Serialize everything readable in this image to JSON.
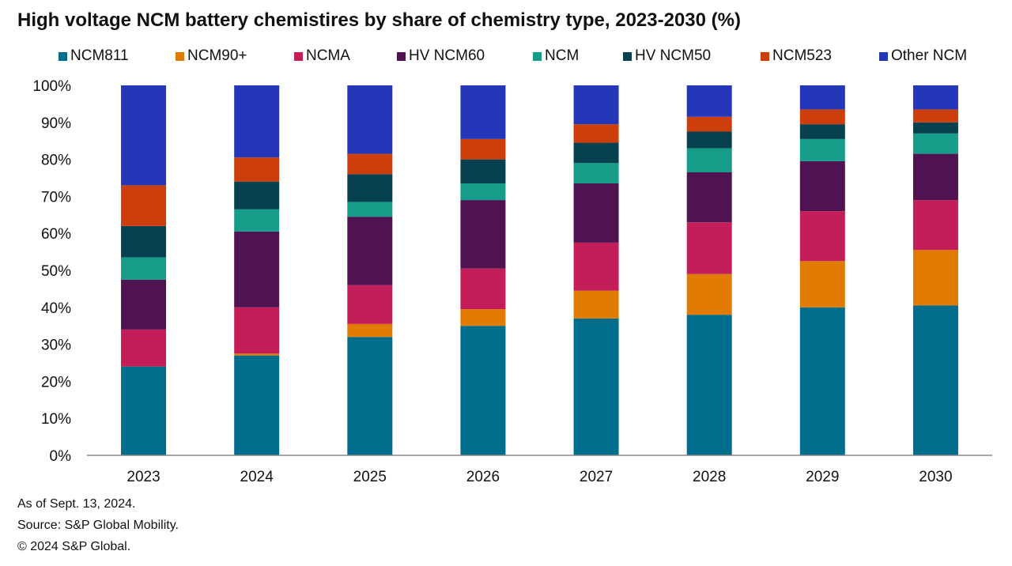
{
  "chart_data": {
    "type": "bar",
    "stacked": true,
    "title": "High voltage NCM battery chemistires by share of chemistry type, 2023-2030 (%)",
    "categories": [
      "2023",
      "2024",
      "2025",
      "2026",
      "2027",
      "2028",
      "2029",
      "2030"
    ],
    "ylim": [
      0,
      100
    ],
    "yticks": [
      "0%",
      "10%",
      "20%",
      "30%",
      "40%",
      "50%",
      "60%",
      "70%",
      "80%",
      "90%",
      "100%"
    ],
    "legend_position": "top",
    "grid": false,
    "series": [
      {
        "name": "NCM811",
        "color": "#006D8C",
        "values": [
          24,
          27,
          32,
          35,
          37,
          38,
          40,
          40.5
        ]
      },
      {
        "name": "NCM90+",
        "color": "#E07B00",
        "values": [
          0,
          0.5,
          3.5,
          4.5,
          7.5,
          11,
          12.5,
          15
        ]
      },
      {
        "name": "NCMA",
        "color": "#C41E5A",
        "values": [
          10,
          12.5,
          10.5,
          11,
          13,
          14,
          13.5,
          13.5
        ]
      },
      {
        "name": "HV NCM60",
        "color": "#4E1350",
        "values": [
          13.5,
          20.5,
          18.5,
          18.5,
          16,
          13.5,
          13.5,
          12.5
        ]
      },
      {
        "name": "NCM",
        "color": "#169D8A",
        "values": [
          6,
          6,
          4,
          4.5,
          5.5,
          6.5,
          6,
          5.5
        ]
      },
      {
        "name": "HV NCM50",
        "color": "#07404F",
        "values": [
          8.5,
          7.5,
          7.5,
          6.5,
          5.5,
          4.5,
          4,
          3
        ]
      },
      {
        "name": "NCM523",
        "color": "#CC3F0C",
        "values": [
          11,
          6.5,
          5.5,
          5.5,
          5,
          4,
          4,
          3.5
        ]
      },
      {
        "name": "Other NCM",
        "color": "#2437B8",
        "values": [
          27,
          19.5,
          18.5,
          14.5,
          10.5,
          8.5,
          6.5,
          6.5
        ]
      }
    ]
  },
  "footnotes": {
    "asof": "As of Sept. 13, 2024.",
    "source": "Source: S&P Global Mobility.",
    "copyright": "© 2024 S&P Global."
  }
}
